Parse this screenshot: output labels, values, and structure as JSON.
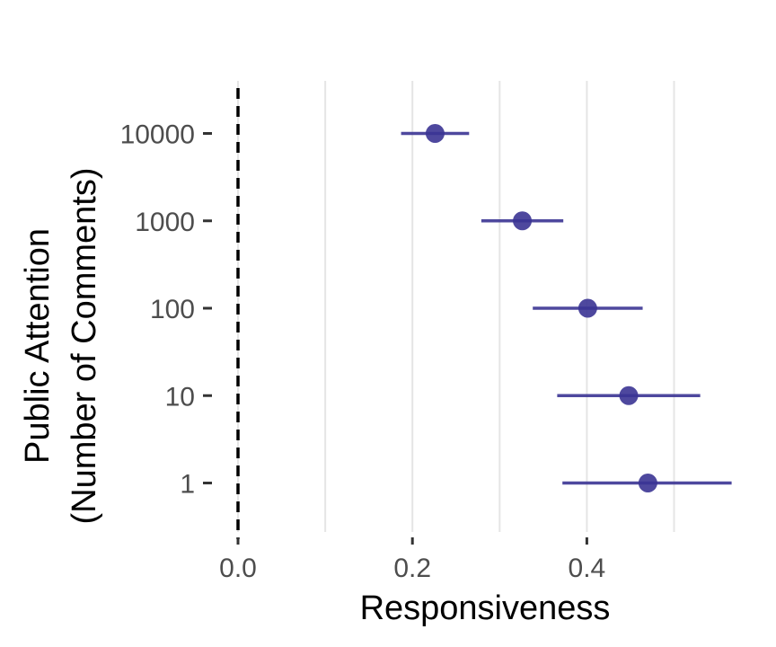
{
  "chart_data": {
    "type": "scatter",
    "title": "",
    "xlabel": "Responsiveness",
    "ylabel_lines": [
      "Public Attention",
      "(Number of Comments)"
    ],
    "xlim": [
      0.0,
      0.57
    ],
    "x_ticks": [
      {
        "value": 0.0,
        "label": "0.0"
      },
      {
        "value": 0.2,
        "label": "0.2"
      },
      {
        "value": 0.4,
        "label": "0.4"
      }
    ],
    "x_minor_gridlines": [
      0.1,
      0.3,
      0.5
    ],
    "categories": [
      "1",
      "10",
      "100",
      "1000",
      "10000"
    ],
    "series": [
      {
        "points": [
          {
            "y": "10000",
            "x": 0.226,
            "lower": 0.187,
            "upper": 0.265
          },
          {
            "y": "1000",
            "x": 0.326,
            "lower": 0.279,
            "upper": 0.373
          },
          {
            "y": "100",
            "x": 0.401,
            "lower": 0.338,
            "upper": 0.464
          },
          {
            "y": "10",
            "x": 0.448,
            "lower": 0.366,
            "upper": 0.53
          },
          {
            "y": "1",
            "x": 0.47,
            "lower": 0.372,
            "upper": 0.566
          }
        ]
      }
    ],
    "reference_line": {
      "x": 0.0,
      "style": "dashed"
    },
    "grid": "vertical",
    "legend": "none",
    "colors": {
      "point": "#3b3494",
      "grid": "#e5e5e5",
      "reference": "#000000",
      "tick_text": "#4d4d4d",
      "title_text": "#000000"
    }
  }
}
